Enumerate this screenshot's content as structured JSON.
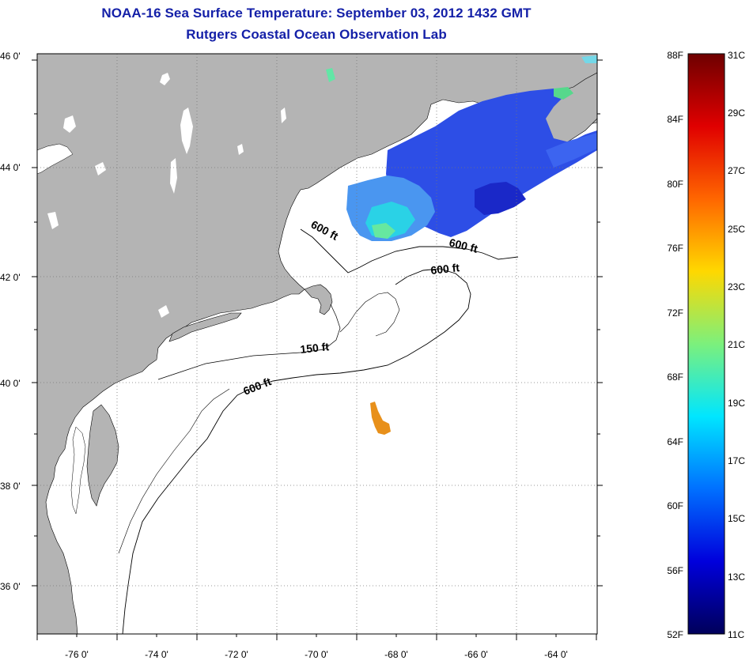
{
  "title": {
    "line1": "NOAA-16 Sea Surface Temperature:  September 03, 2012 1432 GMT",
    "line2": "Rutgers Coastal Ocean Observation Lab"
  },
  "map": {
    "latitude_labels": [
      "46 0'",
      "44 0'",
      "42 0'",
      "40 0'",
      "38 0'",
      "36 0'"
    ],
    "longitude_labels": [
      "-76 0'",
      "-74 0'",
      "-72 0'",
      "-70 0'",
      "-68 0'",
      "-66 0'",
      "-64 0'"
    ],
    "contour_labels": [
      {
        "id": "contour-label-600ft-gom-west",
        "text": "600 ft"
      },
      {
        "id": "contour-label-600ft-gom-east",
        "text": "600 ft"
      },
      {
        "id": "contour-label-600ft-georges",
        "text": "600 ft"
      },
      {
        "id": "contour-label-150ft",
        "text": "150 ft"
      },
      {
        "id": "contour-label-600ft-shelf",
        "text": "600 ft"
      }
    ],
    "land_color": "#b4b4b4",
    "ocean_color": "#ffffff",
    "graticule": "dotted",
    "warm_patch_color": "#e8901a"
  },
  "colorbar": {
    "fahrenheit_labels": [
      "88F",
      "84F",
      "80F",
      "76F",
      "72F",
      "68F",
      "64F",
      "60F",
      "56F",
      "52F"
    ],
    "celsius_labels": [
      "31C",
      "29C",
      "27C",
      "25C",
      "23C",
      "21C",
      "19C",
      "17C",
      "15C",
      "13C",
      "11C"
    ],
    "colors": [
      "#6e0000",
      "#e00000",
      "#ff6600",
      "#ffd800",
      "#7cf07c",
      "#00e6ff",
      "#0070ff",
      "#0000dc",
      "#00005a"
    ]
  }
}
